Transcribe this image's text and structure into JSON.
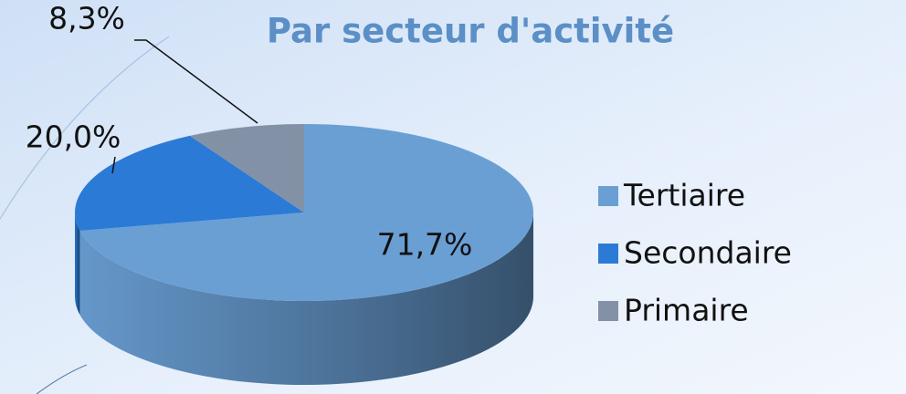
{
  "chart_data": {
    "type": "pie",
    "title": "Par secteur d'activité",
    "categories": [
      "Tertiaire",
      "Secondaire",
      "Primaire"
    ],
    "values": [
      71.7,
      20.0,
      8.3
    ],
    "value_labels": [
      "71,7%",
      "20,0%",
      "8,3%"
    ],
    "colors": [
      "#6a9fd4",
      "#2b7bd6",
      "#8391a6"
    ],
    "legend": "right"
  }
}
